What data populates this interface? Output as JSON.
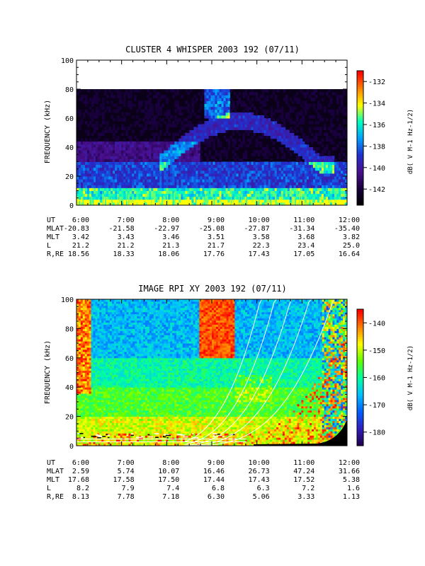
{
  "chart_data": [
    {
      "type": "heatmap",
      "title": "CLUSTER 4 WHISPER 2003 192 (07/11)",
      "ylabel": "FREQUENCY (kHz)",
      "ylim": [
        0,
        100
      ],
      "y_ticks": [
        "0",
        "20",
        "40",
        "60",
        "80",
        "100"
      ],
      "x_ticks": [
        "6:00",
        "7:00",
        "8:00",
        "9:00",
        "10:00",
        "11:00",
        "12:00"
      ],
      "colorbar": {
        "label": "dB( V M-1 Hz-1/2)",
        "ticks": [
          "-132",
          "-134",
          "-136",
          "-138",
          "-140",
          "-142"
        ],
        "range": [
          -143.5,
          -131
        ],
        "colors": [
          "#000000",
          "#1a0040",
          "#4a1090",
          "#2030d0",
          "#00a0ff",
          "#00ffc0",
          "#ffff00",
          "#ff8000",
          "#ff0000"
        ]
      },
      "data_ceiling_khz": 80,
      "ephemeris": {
        "rows": [
          {
            "label": "UT",
            "values": [
              "6:00",
              "7:00",
              "8:00",
              "9:00",
              "10:00",
              "11:00",
              "12:00"
            ]
          },
          {
            "label": "MLAT",
            "values": [
              "-20.83",
              "-21.58",
              "-22.97",
              "-25.08",
              "-27.87",
              "-31.34",
              "-35.40"
            ]
          },
          {
            "label": "MLT",
            "values": [
              "3.42",
              "3.43",
              "3.46",
              "3.51",
              "3.58",
              "3.68",
              "3.82"
            ]
          },
          {
            "label": "L",
            "values": [
              "21.2",
              "21.2",
              "21.3",
              "21.7",
              "22.3",
              "23.4",
              "25.0"
            ]
          },
          {
            "label": "R,RE",
            "values": [
              "18.56",
              "18.33",
              "18.06",
              "17.76",
              "17.43",
              "17.05",
              "16.64"
            ]
          }
        ]
      }
    },
    {
      "type": "heatmap",
      "title": "IMAGE RPI XY 2003 192 (07/11)",
      "ylabel": "FREQUENCY (kHz)",
      "ylim": [
        0,
        100
      ],
      "y_ticks": [
        "0",
        "20",
        "40",
        "60",
        "80",
        "100"
      ],
      "x_ticks": [
        "6:00",
        "7:00",
        "8:00",
        "9:00",
        "10:00",
        "11:00",
        "12:00"
      ],
      "colorbar": {
        "label": "dB( V M-1 Hz-1/2)",
        "ticks": [
          "-140",
          "-150",
          "-160",
          "-170",
          "-180"
        ],
        "range": [
          -185,
          -135
        ],
        "colors": [
          "#200050",
          "#3020c0",
          "#0060ff",
          "#00c0ff",
          "#00ffa0",
          "#60ff00",
          "#ffff00",
          "#ff8000",
          "#ff0000"
        ]
      },
      "ephemeris": {
        "rows": [
          {
            "label": "UT",
            "values": [
              "6:00",
              "7:00",
              "8:00",
              "9:00",
              "10:00",
              "11:00",
              "12:00"
            ]
          },
          {
            "label": "MLAT",
            "values": [
              "2.59",
              "5.74",
              "10.07",
              "16.46",
              "26.73",
              "47.24",
              "31.66"
            ]
          },
          {
            "label": "MLT",
            "values": [
              "17.68",
              "17.58",
              "17.50",
              "17.44",
              "17.43",
              "17.52",
              "5.38"
            ]
          },
          {
            "label": "L",
            "values": [
              "8.2",
              "7.9",
              "7.4",
              "6.8",
              "6.3",
              "7.2",
              "1.6"
            ]
          },
          {
            "label": "R,RE",
            "values": [
              "8.13",
              "7.78",
              "7.18",
              "6.30",
              "5.06",
              "3.33",
              "1.13"
            ]
          }
        ]
      }
    }
  ]
}
